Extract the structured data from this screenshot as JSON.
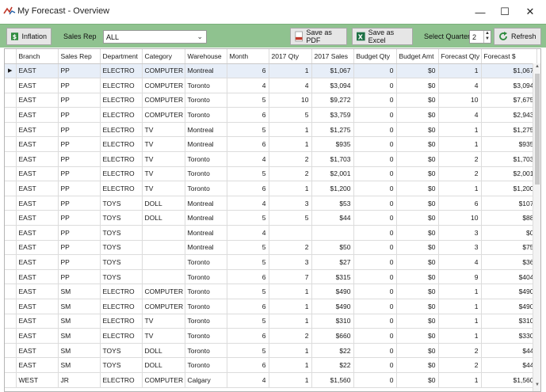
{
  "window": {
    "title": "My Forecast - Overview",
    "minimize_glyph": "—",
    "maximize_glyph": "☐",
    "close_glyph": "✕"
  },
  "toolbar": {
    "inflation_label": "Inflation",
    "sales_rep_label": "Sales Rep",
    "sales_rep_value": "ALL",
    "save_pdf_label": "Save as PDF",
    "save_excel_label": "Save as Excel",
    "select_quarter_label": "Select Quarter:",
    "quarter_value": "2",
    "refresh_label": "Refresh",
    "accent_color": "#8fc28f"
  },
  "grid": {
    "columns": [
      "Branch",
      "Sales Rep",
      "Department",
      "Category",
      "Warehouse",
      "Month",
      "2017 Qty",
      "2017 Sales",
      "Budget Qty",
      "Budget Amt",
      "Forecast Qty",
      "Forecast $"
    ],
    "rows": [
      [
        "EAST",
        "PP",
        "ELECTRO",
        "COMPUTER",
        "Montreal",
        "6",
        "1",
        "$1,067",
        "0",
        "$0",
        "1",
        "$1,067"
      ],
      [
        "EAST",
        "PP",
        "ELECTRO",
        "COMPUTER",
        "Toronto",
        "4",
        "4",
        "$3,094",
        "0",
        "$0",
        "4",
        "$3,094"
      ],
      [
        "EAST",
        "PP",
        "ELECTRO",
        "COMPUTER",
        "Toronto",
        "5",
        "10",
        "$9,272",
        "0",
        "$0",
        "10",
        "$7,675"
      ],
      [
        "EAST",
        "PP",
        "ELECTRO",
        "COMPUTER",
        "Toronto",
        "6",
        "5",
        "$3,759",
        "0",
        "$0",
        "4",
        "$2,943"
      ],
      [
        "EAST",
        "PP",
        "ELECTRO",
        "TV",
        "Montreal",
        "5",
        "1",
        "$1,275",
        "0",
        "$0",
        "1",
        "$1,275"
      ],
      [
        "EAST",
        "PP",
        "ELECTRO",
        "TV",
        "Montreal",
        "6",
        "1",
        "$935",
        "0",
        "$0",
        "1",
        "$935"
      ],
      [
        "EAST",
        "PP",
        "ELECTRO",
        "TV",
        "Toronto",
        "4",
        "2",
        "$1,703",
        "0",
        "$0",
        "2",
        "$1,703"
      ],
      [
        "EAST",
        "PP",
        "ELECTRO",
        "TV",
        "Toronto",
        "5",
        "2",
        "$2,001",
        "0",
        "$0",
        "2",
        "$2,001"
      ],
      [
        "EAST",
        "PP",
        "ELECTRO",
        "TV",
        "Toronto",
        "6",
        "1",
        "$1,200",
        "0",
        "$0",
        "1",
        "$1,200"
      ],
      [
        "EAST",
        "PP",
        "TOYS",
        "DOLL",
        "Montreal",
        "4",
        "3",
        "$53",
        "0",
        "$0",
        "6",
        "$107"
      ],
      [
        "EAST",
        "PP",
        "TOYS",
        "DOLL",
        "Montreal",
        "5",
        "5",
        "$44",
        "0",
        "$0",
        "10",
        "$88"
      ],
      [
        "EAST",
        "PP",
        "TOYS",
        "",
        "Montreal",
        "4",
        "",
        "",
        "0",
        "$0",
        "3",
        "$0"
      ],
      [
        "EAST",
        "PP",
        "TOYS",
        "",
        "Montreal",
        "5",
        "2",
        "$50",
        "0",
        "$0",
        "3",
        "$75"
      ],
      [
        "EAST",
        "PP",
        "TOYS",
        "",
        "Toronto",
        "5",
        "3",
        "$27",
        "0",
        "$0",
        "4",
        "$36"
      ],
      [
        "EAST",
        "PP",
        "TOYS",
        "",
        "Toronto",
        "6",
        "7",
        "$315",
        "0",
        "$0",
        "9",
        "$404"
      ],
      [
        "EAST",
        "SM",
        "ELECTRO",
        "COMPUTER",
        "Toronto",
        "5",
        "1",
        "$490",
        "0",
        "$0",
        "1",
        "$490"
      ],
      [
        "EAST",
        "SM",
        "ELECTRO",
        "COMPUTER",
        "Toronto",
        "6",
        "1",
        "$490",
        "0",
        "$0",
        "1",
        "$490"
      ],
      [
        "EAST",
        "SM",
        "ELECTRO",
        "TV",
        "Toronto",
        "5",
        "1",
        "$310",
        "0",
        "$0",
        "1",
        "$310"
      ],
      [
        "EAST",
        "SM",
        "ELECTRO",
        "TV",
        "Toronto",
        "6",
        "2",
        "$660",
        "0",
        "$0",
        "1",
        "$330"
      ],
      [
        "EAST",
        "SM",
        "TOYS",
        "DOLL",
        "Toronto",
        "5",
        "1",
        "$22",
        "0",
        "$0",
        "2",
        "$44"
      ],
      [
        "EAST",
        "SM",
        "TOYS",
        "DOLL",
        "Toronto",
        "6",
        "1",
        "$22",
        "0",
        "$0",
        "2",
        "$44"
      ],
      [
        "WEST",
        "JR",
        "ELECTRO",
        "COMPUTER",
        "Calgary",
        "4",
        "1",
        "$1,560",
        "0",
        "$0",
        "1",
        "$1,560"
      ]
    ],
    "selected_row_indicator": "▶"
  }
}
